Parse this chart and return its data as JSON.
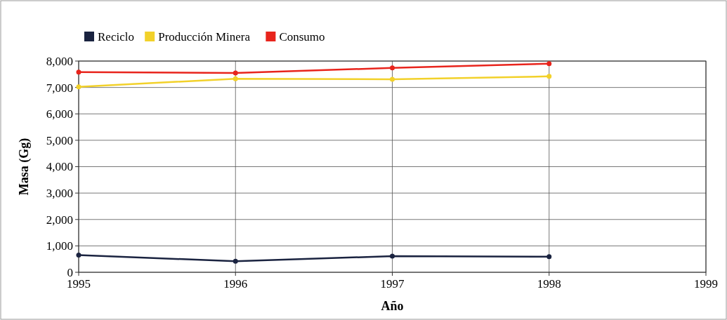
{
  "chart_data": {
    "type": "line",
    "xlabel": "Año",
    "ylabel": "Masa (Gg)",
    "x": [
      1995,
      1996,
      1997,
      1998
    ],
    "xlim": [
      1995,
      1999
    ],
    "xticks": [
      1995,
      1996,
      1997,
      1998,
      1999
    ],
    "ylim": [
      0,
      8000
    ],
    "yticks": [
      {
        "value": 0,
        "label": "0"
      },
      {
        "value": 1000,
        "label": "1,000"
      },
      {
        "value": 2000,
        "label": "2,000"
      },
      {
        "value": 3000,
        "label": "3,000"
      },
      {
        "value": 4000,
        "label": "4,000"
      },
      {
        "value": 5000,
        "label": "5,000"
      },
      {
        "value": 6000,
        "label": "6,000"
      },
      {
        "value": 7000,
        "label": "7,000"
      },
      {
        "value": 8000,
        "label": "8,000"
      }
    ],
    "grid": true,
    "legend": "top left",
    "marker": "circle",
    "line_style": "solid",
    "series": [
      {
        "name": "Reciclo",
        "color": "#1a2340",
        "values": [
          650,
          420,
          610,
          590
        ]
      },
      {
        "name": "Producción Minera",
        "color": "#f2d12a",
        "values": [
          7020,
          7330,
          7310,
          7420
        ]
      },
      {
        "name": "Consumo",
        "color": "#e8241c",
        "values": [
          7580,
          7550,
          7740,
          7900
        ]
      }
    ]
  }
}
